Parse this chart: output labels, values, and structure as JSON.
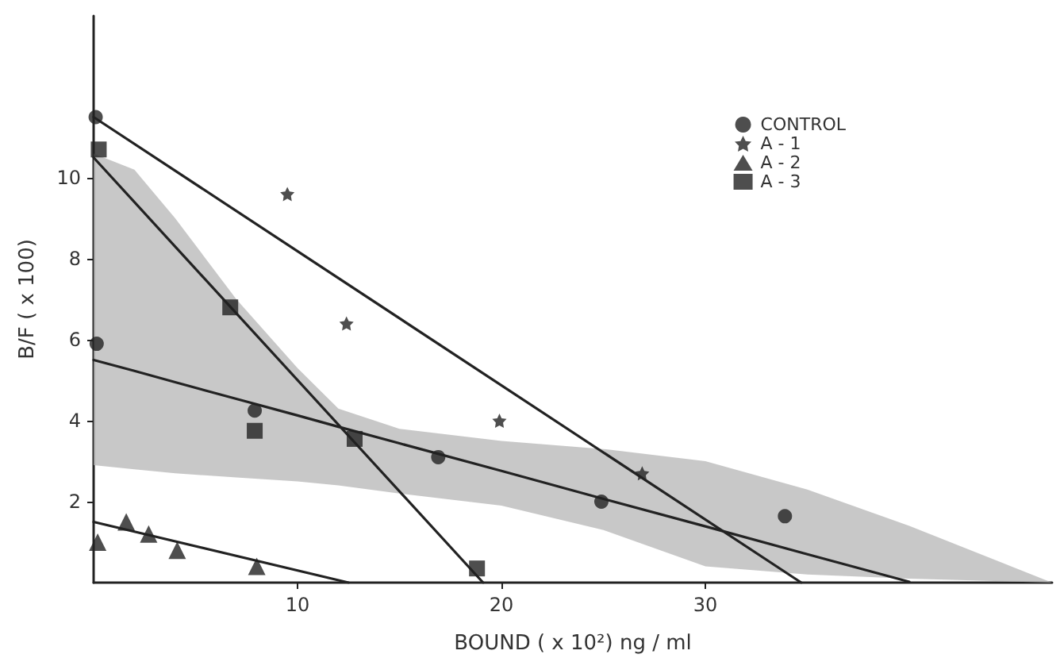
{
  "chart_data": {
    "type": "scatter",
    "xlabel": "BOUND ( x 10²) ng / ml",
    "ylabel": "B/F ( x 100)",
    "xlim": [
      0,
      47
    ],
    "ylim": [
      0,
      14
    ],
    "xticks": [
      10,
      20,
      30
    ],
    "yticks": [
      2,
      4,
      6,
      8,
      10
    ],
    "grid": false,
    "legend": "top right",
    "series": [
      {
        "name": "CONTROL",
        "marker": "circle",
        "color": "#222222",
        "x": [
          0.15,
          0.1,
          7.9,
          16.9,
          24.9,
          33.9
        ],
        "values": [
          5.9,
          11.5,
          4.25,
          3.1,
          2.0,
          1.64
        ]
      },
      {
        "name": "A - 1",
        "marker": "star",
        "color": "#222222",
        "x": [
          9.5,
          12.4,
          19.9,
          26.9
        ],
        "values": [
          9.6,
          6.4,
          4.0,
          2.7
        ]
      },
      {
        "name": "A - 2",
        "marker": "triangle",
        "color": "#222222",
        "x": [
          0.2,
          1.6,
          2.7,
          4.1,
          8.0
        ],
        "values": [
          1.0,
          1.5,
          1.2,
          0.8,
          0.4
        ]
      },
      {
        "name": "A - 3",
        "marker": "square",
        "color": "#222222",
        "x": [
          0.25,
          6.7,
          7.9,
          12.8,
          18.8
        ],
        "values": [
          10.7,
          6.8,
          3.75,
          3.55,
          0.35
        ]
      },
      {
        "type": "line",
        "marker": "none",
        "color": "#222222",
        "x": [
          0,
          2,
          4,
          7,
          10,
          12,
          15,
          20,
          25,
          30,
          35,
          40,
          47
        ],
        "values": [
          5.5,
          5.23,
          4.95,
          4.54,
          4.13,
          3.85,
          3.44,
          2.76,
          2.07,
          1.39,
          0.7,
          0.02,
          null
        ],
        "upper": [
          10.6,
          10.2,
          9.0,
          7.0,
          5.3,
          4.3,
          3.8,
          3.5,
          3.3,
          3.0,
          2.3,
          1.4,
          0
        ],
        "lower": [
          2.9,
          2.8,
          2.7,
          2.6,
          2.5,
          2.4,
          2.2,
          1.9,
          1.3,
          0.4,
          0.2,
          0.1,
          0
        ]
      },
      {
        "type": "line",
        "marker": "none",
        "color": "#222222",
        "x": [
          0,
          34.7
        ],
        "values": [
          11.5,
          0
        ]
      },
      {
        "type": "line",
        "marker": "none",
        "color": "#222222",
        "x": [
          0,
          19.1
        ],
        "values": [
          10.5,
          0
        ]
      },
      {
        "type": "line",
        "marker": "none",
        "color": "#222222",
        "x": [
          0,
          12.5
        ],
        "values": [
          1.5,
          0
        ]
      }
    ]
  }
}
